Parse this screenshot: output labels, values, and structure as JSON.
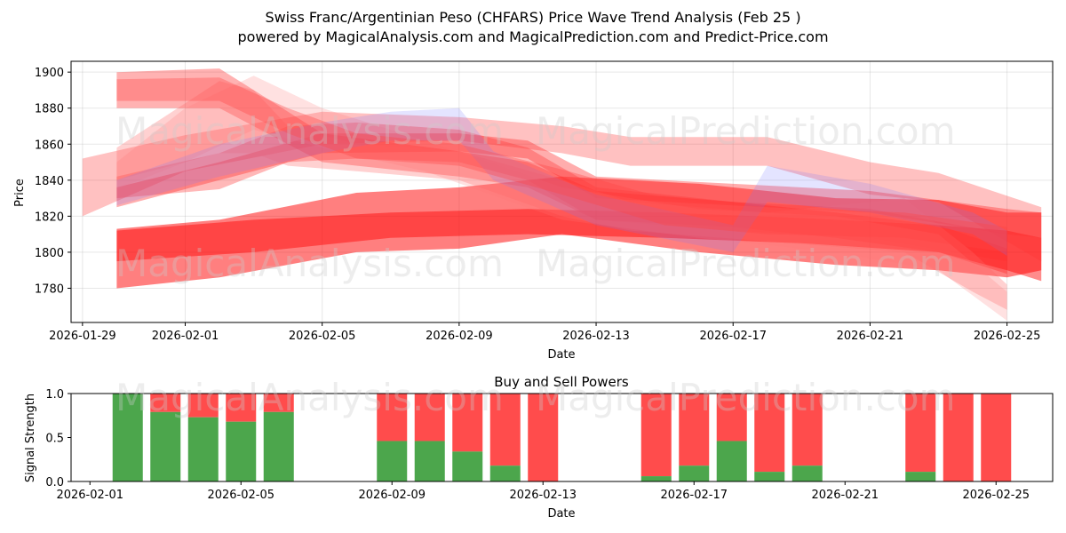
{
  "title_line1": "Swiss Franc/Argentinian Peso (CHFARS) Price Wave Trend Analysis (Feb 25 )",
  "title_line2": "powered by MagicalAnalysis.com and MagicalPrediction.com and Predict-Price.com",
  "watermarks": [
    "MagicalAnalysis.com",
    "MagicalPrediction.com"
  ],
  "chart_data": [
    {
      "type": "area",
      "name": "price-waves",
      "xlabel": "Date",
      "ylabel": "Price",
      "xlim": [
        "2026-01-28T16:00",
        "2026-02-26T08:00"
      ],
      "ylim": [
        1761,
        1906
      ],
      "xticks": [
        "2026-01-29",
        "2026-02-01",
        "2026-02-05",
        "2026-02-09",
        "2026-02-13",
        "2026-02-17",
        "2026-02-21",
        "2026-02-25"
      ],
      "yticks": [
        1780,
        1800,
        1820,
        1840,
        1860,
        1880,
        1900
      ],
      "grid": true,
      "bands": [
        {
          "color": "#ff0000",
          "opacity": 0.5,
          "points": [
            [
              "2026-01-30",
              1780,
              1813
            ],
            [
              "2026-02-02",
              1786,
              1818
            ],
            [
              "2026-02-06",
              1800,
              1833
            ],
            [
              "2026-02-09",
              1802,
              1836
            ],
            [
              "2026-02-12",
              1810,
              1842
            ],
            [
              "2026-02-16",
              1800,
              1838
            ],
            [
              "2026-02-20",
              1793,
              1830
            ],
            [
              "2026-02-23",
              1790,
              1829
            ],
            [
              "2026-02-25",
              1786,
              1822
            ],
            [
              "2026-02-26",
              1790,
              1822
            ]
          ]
        },
        {
          "color": "#ff0000",
          "opacity": 0.45,
          "points": [
            [
              "2026-01-30",
              1795,
              1812
            ],
            [
              "2026-02-03",
              1800,
              1818
            ],
            [
              "2026-02-07",
              1808,
              1822
            ],
            [
              "2026-02-11",
              1810,
              1824
            ],
            [
              "2026-02-15",
              1808,
              1822
            ],
            [
              "2026-02-19",
              1805,
              1819
            ],
            [
              "2026-02-23",
              1800,
              1815
            ],
            [
              "2026-02-25",
              1790,
              1812
            ],
            [
              "2026-02-26",
              1784,
              1808
            ]
          ]
        },
        {
          "color": "#ff3333",
          "opacity": 0.3,
          "points": [
            [
              "2026-01-29",
              1820,
              1852
            ],
            [
              "2026-02-01",
              1845,
              1865
            ],
            [
              "2026-02-05",
              1860,
              1878
            ],
            [
              "2026-02-09",
              1862,
              1875
            ],
            [
              "2026-02-12",
              1855,
              1870
            ],
            [
              "2026-02-14",
              1848,
              1864
            ],
            [
              "2026-02-18",
              1848,
              1864
            ],
            [
              "2026-02-21",
              1832,
              1850
            ],
            [
              "2026-02-23",
              1828,
              1844
            ],
            [
              "2026-02-26",
              1795,
              1825
            ]
          ]
        },
        {
          "color": "#ff3333",
          "opacity": 0.4,
          "points": [
            [
              "2026-01-30",
              1825,
              1836
            ],
            [
              "2026-02-02",
              1840,
              1850
            ],
            [
              "2026-02-05",
              1855,
              1866
            ],
            [
              "2026-02-09",
              1856,
              1866
            ],
            [
              "2026-02-11",
              1852,
              1862
            ],
            [
              "2026-02-13",
              1830,
              1842
            ],
            [
              "2026-02-17",
              1826,
              1838
            ],
            [
              "2026-02-21",
              1822,
              1834
            ],
            [
              "2026-02-25",
              1810,
              1824
            ],
            [
              "2026-02-26",
              1808,
              1822
            ]
          ]
        },
        {
          "color": "#ff3333",
          "opacity": 0.35,
          "points": [
            [
              "2026-01-30",
              1830,
              1842
            ],
            [
              "2026-02-02",
              1835,
              1855
            ],
            [
              "2026-02-04",
              1850,
              1870
            ],
            [
              "2026-02-06",
              1852,
              1872
            ],
            [
              "2026-02-09",
              1850,
              1868
            ],
            [
              "2026-02-11",
              1840,
              1858
            ],
            [
              "2026-02-13",
              1818,
              1836
            ],
            [
              "2026-02-17",
              1812,
              1828
            ],
            [
              "2026-02-21",
              1808,
              1824
            ],
            [
              "2026-02-25",
              1795,
              1810
            ]
          ]
        },
        {
          "color": "#ff2222",
          "opacity": 0.35,
          "points": [
            [
              "2026-01-30",
              1880,
              1900
            ],
            [
              "2026-02-02",
              1880,
              1902
            ],
            [
              "2026-02-03",
              1870,
              1890
            ],
            [
              "2026-02-05",
              1850,
              1866
            ],
            [
              "2026-02-09",
              1842,
              1856
            ],
            [
              "2026-02-11",
              1836,
              1850
            ],
            [
              "2026-02-13",
              1818,
              1834
            ],
            [
              "2026-02-17",
              1814,
              1828
            ],
            [
              "2026-02-20",
              1808,
              1822
            ],
            [
              "2026-02-23",
              1800,
              1815
            ],
            [
              "2026-02-25",
              1788,
              1802
            ]
          ]
        },
        {
          "color": "#ff6666",
          "opacity": 0.3,
          "points": [
            [
              "2026-01-30",
              1840,
              1858
            ],
            [
              "2026-02-02",
              1855,
              1895
            ],
            [
              "2026-02-03",
              1855,
              1890
            ],
            [
              "2026-02-04",
              1848,
              1870
            ],
            [
              "2026-02-06",
              1845,
              1860
            ],
            [
              "2026-02-09",
              1840,
              1856
            ],
            [
              "2026-02-12",
              1820,
              1840
            ],
            [
              "2026-02-14",
              1812,
              1828
            ],
            [
              "2026-02-18",
              1806,
              1822
            ],
            [
              "2026-02-22",
              1800,
              1830
            ],
            [
              "2026-02-24",
              1778,
              1800
            ],
            [
              "2026-02-25",
              1768,
              1782
            ]
          ]
        },
        {
          "color": "#ff7777",
          "opacity": 0.22,
          "points": [
            [
              "2026-01-30",
              1835,
              1850
            ],
            [
              "2026-02-01",
              1850,
              1880
            ],
            [
              "2026-02-03",
              1868,
              1898
            ],
            [
              "2026-02-05",
              1858,
              1880
            ],
            [
              "2026-02-08",
              1845,
              1862
            ],
            [
              "2026-02-12",
              1818,
              1836
            ],
            [
              "2026-02-16",
              1808,
              1824
            ],
            [
              "2026-02-20",
              1800,
              1820
            ],
            [
              "2026-02-23",
              1790,
              1810
            ],
            [
              "2026-02-25",
              1762,
              1778
            ]
          ]
        },
        {
          "color": "#7777ff",
          "opacity": 0.2,
          "points": [
            [
              "2026-01-30",
              1826,
              1840
            ],
            [
              "2026-02-02",
              1842,
              1860
            ],
            [
              "2026-02-05",
              1855,
              1872
            ],
            [
              "2026-02-07",
              1862,
              1878
            ],
            [
              "2026-02-09",
              1862,
              1880
            ],
            [
              "2026-02-10",
              1840,
              1856
            ],
            [
              "2026-02-13",
              1815,
              1832
            ],
            [
              "2026-02-17",
              1800,
              1815
            ],
            [
              "2026-02-18",
              1828,
              1848
            ],
            [
              "2026-02-21",
              1822,
              1838
            ],
            [
              "2026-02-24",
              1810,
              1822
            ],
            [
              "2026-02-25",
              1798,
              1812
            ]
          ]
        },
        {
          "color": "#ff4444",
          "opacity": 0.35,
          "points": [
            [
              "2026-01-30",
              1884,
              1896
            ],
            [
              "2026-02-02",
              1884,
              1897
            ],
            [
              "2026-02-04",
              1866,
              1880
            ],
            [
              "2026-02-06",
              1852,
              1866
            ],
            [
              "2026-02-09",
              1848,
              1860
            ],
            [
              "2026-02-12",
              1832,
              1846
            ],
            [
              "2026-02-15",
              1815,
              1830
            ],
            [
              "2026-02-18",
              1810,
              1825
            ],
            [
              "2026-02-22",
              1808,
              1822
            ],
            [
              "2026-02-25",
              1800,
              1814
            ]
          ]
        }
      ]
    },
    {
      "type": "bar",
      "name": "buy-sell-powers",
      "title": "Buy and Sell Powers",
      "xlabel": "Date",
      "ylabel": "Signal Strength",
      "xlim": [
        "2026-01-31T12:00",
        "2026-02-26T12:00"
      ],
      "ylim": [
        0,
        1.0
      ],
      "xticks": [
        "2026-02-01",
        "2026-02-05",
        "2026-02-09",
        "2026-02-13",
        "2026-02-17",
        "2026-02-21",
        "2026-02-25"
      ],
      "yticks": [
        0.0,
        0.5,
        1.0
      ],
      "series": [
        {
          "name": "Buy",
          "color": "#4ca64c"
        },
        {
          "name": "Sell",
          "color": "#ff4c4c"
        }
      ],
      "dates": [
        "2026-02-02",
        "2026-02-03",
        "2026-02-04",
        "2026-02-05",
        "2026-02-06",
        "2026-02-09",
        "2026-02-10",
        "2026-02-11",
        "2026-02-12",
        "2026-02-13",
        "2026-02-16",
        "2026-02-17",
        "2026-02-18",
        "2026-02-19",
        "2026-02-20",
        "2026-02-23",
        "2026-02-24",
        "2026-02-25"
      ],
      "buy": [
        1.0,
        0.79,
        0.73,
        0.68,
        0.79,
        0.46,
        0.46,
        0.34,
        0.18,
        0.0,
        0.06,
        0.18,
        0.46,
        0.11,
        0.18,
        0.11,
        0.0,
        0.0
      ]
    }
  ]
}
